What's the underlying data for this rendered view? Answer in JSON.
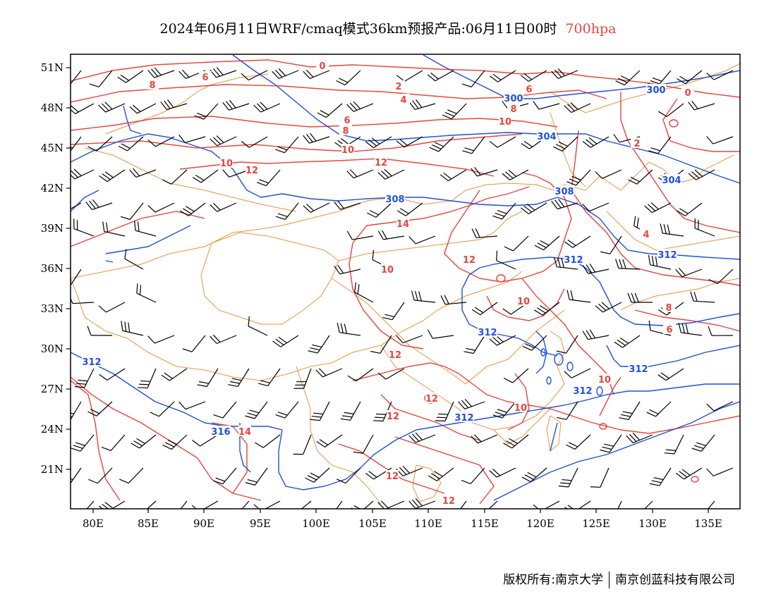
{
  "header": {
    "title": "2024年06月11日WRF/cmaq模式36km预报产品:06月11日00时",
    "level": "700hpa"
  },
  "colors": {
    "temperature_contour": "#e8453c",
    "height_contour": "#1f4fe0",
    "boundaries": "#e8943a",
    "wind_barb": "#000000"
  },
  "axes": {
    "lon_ticks": [
      "80E",
      "85E",
      "90E",
      "95E",
      "100E",
      "105E",
      "110E",
      "115E",
      "120E",
      "125E",
      "130E",
      "135E"
    ],
    "lat_ticks": [
      "51N",
      "48N",
      "45N",
      "42N",
      "39N",
      "36N",
      "33N",
      "30N",
      "27N",
      "24N",
      "21N"
    ]
  },
  "height_labels": [
    "300",
    "300",
    "304",
    "304",
    "308",
    "308",
    "312",
    "312",
    "312",
    "312",
    "312",
    "312",
    "312",
    "316"
  ],
  "temperature_labels": [
    "0",
    "0",
    "2",
    "4",
    "6",
    "6",
    "6",
    "8",
    "8",
    "8",
    "10",
    "10",
    "10",
    "12",
    "12",
    "14",
    "12",
    "10",
    "10",
    "8",
    "6",
    "4",
    "2",
    "12",
    "12",
    "12",
    "12",
    "12",
    "14",
    "10",
    "10"
  ],
  "footer": {
    "copyright": "版权所有:南京大学",
    "company": "南京创蓝科技有限公司"
  }
}
